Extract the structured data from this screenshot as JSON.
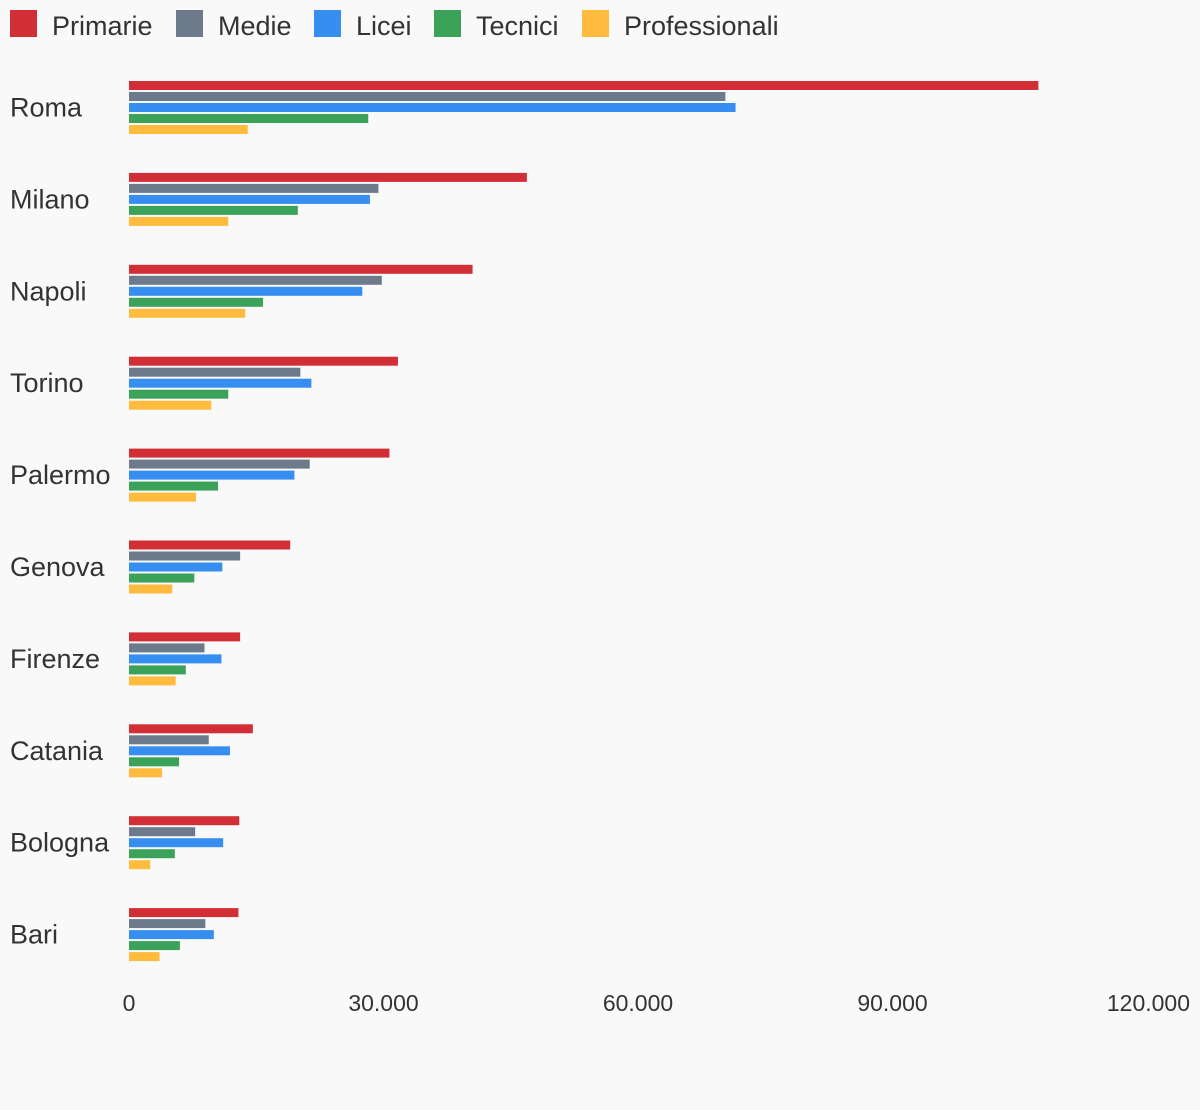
{
  "chart_data": {
    "type": "bar",
    "orientation": "horizontal",
    "categories": [
      "Roma",
      "Milano",
      "Napoli",
      "Torino",
      "Palermo",
      "Genova",
      "Firenze",
      "Catania",
      "Bologna",
      "Bari"
    ],
    "series": [
      {
        "name": "Primarie",
        "color": "#d12e35",
        "values": [
          107200,
          46900,
          40500,
          31700,
          30700,
          19000,
          13100,
          14600,
          13000,
          12900
        ]
      },
      {
        "name": "Medie",
        "color": "#6c7a8c",
        "values": [
          70300,
          29400,
          29800,
          20200,
          21300,
          13100,
          8900,
          9400,
          7800,
          9000
        ]
      },
      {
        "name": "Licei",
        "color": "#368ef0",
        "values": [
          71500,
          28400,
          27500,
          21500,
          19500,
          11000,
          10900,
          11900,
          11100,
          10000
        ]
      },
      {
        "name": "Tecnici",
        "color": "#3ba25a",
        "values": [
          28200,
          19900,
          15800,
          11700,
          10500,
          7700,
          6700,
          5900,
          5400,
          6000
        ]
      },
      {
        "name": "Professionali",
        "color": "#ffbb3d",
        "values": [
          14000,
          11700,
          13700,
          9700,
          7900,
          5100,
          5500,
          3900,
          2500,
          3600
        ]
      }
    ],
    "xlim": [
      0,
      120000
    ],
    "ticks": [
      {
        "value": 0,
        "label": "0"
      },
      {
        "value": 30000,
        "label": "30.000"
      },
      {
        "value": 60000,
        "label": "60.000"
      },
      {
        "value": 90000,
        "label": "90.000"
      },
      {
        "value": 120000,
        "label": "120.000"
      }
    ],
    "grid": false,
    "legend_position": "top-left"
  }
}
